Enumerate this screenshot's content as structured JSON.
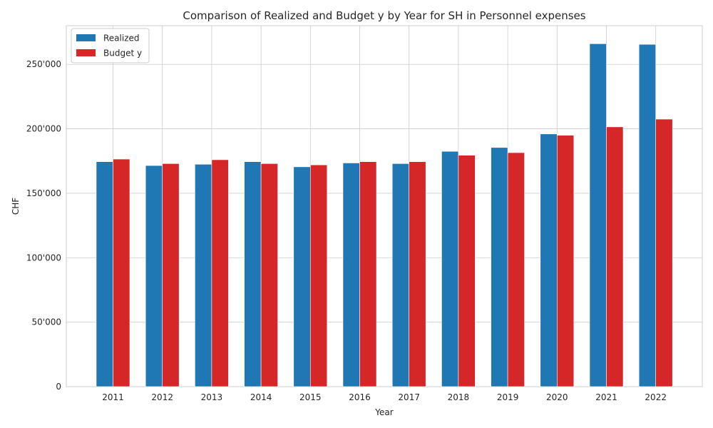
{
  "chart_data": {
    "type": "bar",
    "title": "Comparison of Realized and Budget y by Year for SH in Personnel expenses",
    "xlabel": "Year",
    "ylabel": "CHF",
    "categories": [
      "2011",
      "2012",
      "2013",
      "2014",
      "2015",
      "2016",
      "2017",
      "2018",
      "2019",
      "2020",
      "2021",
      "2022"
    ],
    "series": [
      {
        "name": "Realized",
        "color": "#1f77b4",
        "values": [
          174500,
          171500,
          172500,
          174500,
          170500,
          173500,
          173000,
          182500,
          185500,
          196000,
          266000,
          265500
        ]
      },
      {
        "name": "Budget y",
        "color": "#d62728",
        "values": [
          176500,
          173000,
          176000,
          173000,
          172000,
          174500,
          174500,
          179500,
          181500,
          195000,
          201500,
          207500
        ]
      }
    ],
    "ylim": [
      0,
      280000
    ],
    "yticks": [
      0,
      50000,
      100000,
      150000,
      200000,
      250000
    ],
    "ytick_labels": [
      "0",
      "50'000",
      "100'000",
      "150'000",
      "200'000",
      "250'000"
    ],
    "grid": true,
    "legend_position": "top-left"
  }
}
